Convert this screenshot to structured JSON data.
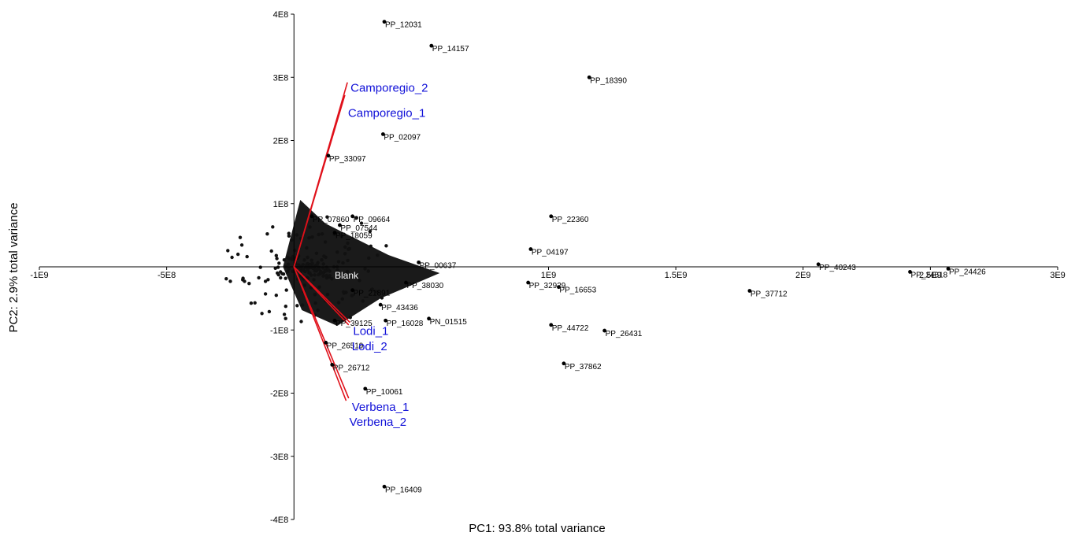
{
  "chart_data": {
    "type": "scatter",
    "xlabel": "PC1: 93.8% total variance",
    "ylabel": "PC2: 2.9% total variance",
    "xlim": [
      -1000000000,
      3000000000
    ],
    "ylim": [
      -400000000,
      400000000
    ],
    "x_ticks": [
      {
        "value": -1000000000,
        "label": "-1E9"
      },
      {
        "value": -500000000,
        "label": "-5E8"
      },
      {
        "value": 1000000000,
        "label": "1E9"
      },
      {
        "value": 1500000000,
        "label": "1.5E9"
      },
      {
        "value": 2000000000,
        "label": "2E9"
      },
      {
        "value": 2500000000,
        "label": "2.5E9"
      },
      {
        "value": 3000000000,
        "label": "3E9"
      }
    ],
    "y_ticks": [
      {
        "value": 400000000,
        "label": "4E8"
      },
      {
        "value": 300000000,
        "label": "3E8"
      },
      {
        "value": 200000000,
        "label": "2E8"
      },
      {
        "value": 100000000,
        "label": "1E8"
      },
      {
        "value": -100000000,
        "label": "-1E8"
      },
      {
        "value": -200000000,
        "label": "-2E8"
      },
      {
        "value": -300000000,
        "label": "-3E8"
      },
      {
        "value": -400000000,
        "label": "-4E8"
      }
    ],
    "cluster_label": "Blank",
    "points": [
      {
        "label": "PP_12031",
        "x": 355000000,
        "y": 388000000
      },
      {
        "label": "PP_14157",
        "x": 540000000,
        "y": 350000000
      },
      {
        "label": "PP_18390",
        "x": 1160000000,
        "y": 300000000
      },
      {
        "label": "PP_02097",
        "x": 350000000,
        "y": 210000000
      },
      {
        "label": "PP_33097",
        "x": 135000000,
        "y": 176000000
      },
      {
        "label": "PP_09664",
        "x": 230000000,
        "y": 80000000
      },
      {
        "label": "PP_07544",
        "x": 180000000,
        "y": 66000000
      },
      {
        "label": "PP_18059",
        "x": 160000000,
        "y": 54000000
      },
      {
        "label": "PP_07860",
        "x": 70000000,
        "y": 80000000
      },
      {
        "label": "PP_22360",
        "x": 1010000000,
        "y": 80000000
      },
      {
        "label": "PP_04197",
        "x": 930000000,
        "y": 28000000
      },
      {
        "label": "PP_00637",
        "x": 490000000,
        "y": 7000000
      },
      {
        "label": "PP_40243",
        "x": 2060000000,
        "y": 4000000
      },
      {
        "label": "PP_24618",
        "x": 2420000000,
        "y": -8000000
      },
      {
        "label": "PP_24426",
        "x": 2570000000,
        "y": -3000000
      },
      {
        "label": "PP_38030",
        "x": 440000000,
        "y": -25000000
      },
      {
        "label": "PP_32929",
        "x": 920000000,
        "y": -25000000
      },
      {
        "label": "PP_16653",
        "x": 1040000000,
        "y": -32000000
      },
      {
        "label": "PP_37712",
        "x": 1790000000,
        "y": -38000000
      },
      {
        "label": "PP_21891",
        "x": 230000000,
        "y": -37000000
      },
      {
        "label": "PP_43436",
        "x": 340000000,
        "y": -60000000
      },
      {
        "label": "PN_01515",
        "x": 530000000,
        "y": -82000000
      },
      {
        "label": "PP_16028",
        "x": 360000000,
        "y": -85000000
      },
      {
        "label": "PP_39125",
        "x": 160000000,
        "y": -85000000
      },
      {
        "label": "PP_44722",
        "x": 1010000000,
        "y": -92000000
      },
      {
        "label": "PP_26431",
        "x": 1220000000,
        "y": -101000000
      },
      {
        "label": "PP_26519",
        "x": 125000000,
        "y": -120000000
      },
      {
        "label": "PP_37862",
        "x": 1060000000,
        "y": -153000000
      },
      {
        "label": "PP_26712",
        "x": 150000000,
        "y": -155000000
      },
      {
        "label": "PP_10061",
        "x": 280000000,
        "y": -193000000
      },
      {
        "label": "PP_16409",
        "x": 355000000,
        "y": -348000000
      }
    ],
    "variables": [
      {
        "name": "Camporegio_2",
        "x": 210000000,
        "y": 292000000
      },
      {
        "name": "Camporegio_1",
        "x": 200000000,
        "y": 272000000
      },
      {
        "name": "Lodi_1",
        "x": 220000000,
        "y": -88000000
      },
      {
        "name": "Lodi_2",
        "x": 215000000,
        "y": -92000000
      },
      {
        "name": "Verbena_1",
        "x": 215000000,
        "y": -208000000
      },
      {
        "name": "Verbena_2",
        "x": 205000000,
        "y": -212000000
      }
    ]
  }
}
